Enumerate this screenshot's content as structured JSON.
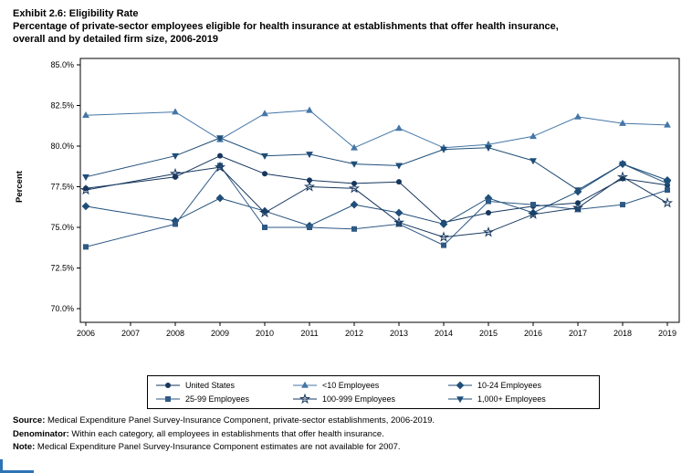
{
  "title": {
    "line1": "Exhibit 2.6: Eligibility Rate",
    "line2": "Percentage of private-sector employees eligible for health insurance at establishments that offer health insurance,",
    "line3": "overall and by detailed firm size, 2006-2019"
  },
  "chart_data": {
    "type": "line",
    "x": [
      2006,
      2007,
      2008,
      2009,
      2010,
      2011,
      2012,
      2013,
      2014,
      2015,
      2016,
      2017,
      2018,
      2019
    ],
    "xlabel": "",
    "ylabel": "Percent",
    "ylim": [
      70.0,
      85.0
    ],
    "yticks": [
      70.0,
      72.5,
      75.0,
      77.5,
      80.0,
      82.5,
      85.0
    ],
    "ytick_labels": [
      "70.0%",
      "72.5%",
      "75.0%",
      "77.5%",
      "80.0%",
      "82.5%",
      "85.0%"
    ],
    "grid": false,
    "legend_position": "bottom",
    "missing_year_note": "2007 estimates not available",
    "series": [
      {
        "name": "United States",
        "marker": "circle",
        "color": "#16365c",
        "values": [
          77.4,
          null,
          78.1,
          79.4,
          78.3,
          77.9,
          77.7,
          77.8,
          75.3,
          75.9,
          76.3,
          76.5,
          78.0,
          77.6
        ]
      },
      {
        "name": "<10 Employees",
        "marker": "triangle",
        "color": "#4476a7",
        "values": [
          81.9,
          null,
          82.1,
          80.4,
          82.0,
          82.2,
          79.9,
          81.1,
          79.9,
          80.1,
          80.6,
          81.8,
          81.4,
          81.3
        ]
      },
      {
        "name": "10-24 Employees",
        "marker": "diamond",
        "color": "#1f4e79",
        "values": [
          76.3,
          null,
          75.4,
          76.8,
          76.0,
          75.1,
          76.4,
          75.9,
          75.2,
          76.8,
          75.9,
          77.2,
          78.9,
          77.9
        ]
      },
      {
        "name": "25-99 Employees",
        "marker": "square",
        "color": "#2e5984",
        "values": [
          73.8,
          null,
          75.2,
          78.8,
          75.0,
          75.0,
          74.9,
          75.2,
          73.9,
          76.6,
          76.4,
          76.1,
          76.4,
          77.3
        ]
      },
      {
        "name": "100-999 Employees",
        "marker": "star",
        "color": "#17375e",
        "values": [
          77.3,
          null,
          78.3,
          78.7,
          75.9,
          77.5,
          77.4,
          75.3,
          74.4,
          74.7,
          75.8,
          76.2,
          78.1,
          76.5
        ]
      },
      {
        "name": "1,000+ Employees",
        "marker": "triangle-down",
        "color": "#1f4e79",
        "values": [
          78.1,
          null,
          79.4,
          80.5,
          79.4,
          79.5,
          78.9,
          78.8,
          79.8,
          79.9,
          79.1,
          77.3,
          78.9,
          77.7
        ]
      }
    ]
  },
  "footnotes": [
    {
      "label": "Source:",
      "text": " Medical Expenditure Panel Survey-Insurance Component, private-sector establishments, 2006-2019."
    },
    {
      "label": "Denominator:",
      "text": " Within each category, all employees in establishments that offer health insurance."
    },
    {
      "label": "Note:",
      "text": " Medical Expenditure Panel Survey-Insurance Component estimates are not available for 2007."
    }
  ]
}
